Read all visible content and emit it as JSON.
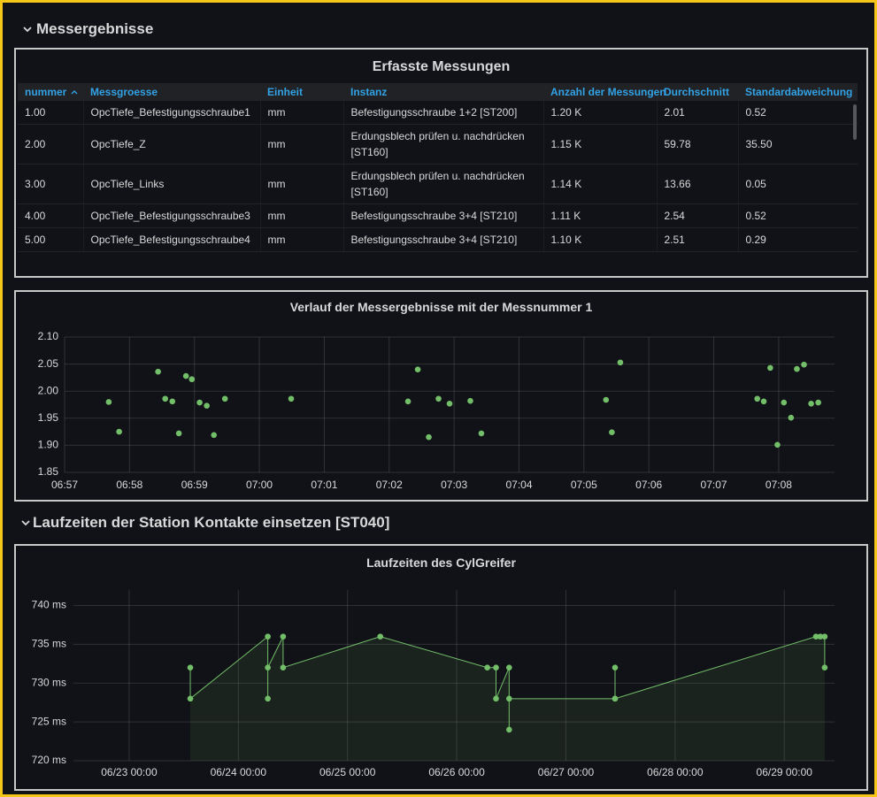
{
  "sections": [
    {
      "title": "Messergebnisse"
    },
    {
      "title": "Laufzeiten der Station Kontakte einsetzen [ST040]"
    }
  ],
  "table": {
    "title": "Erfasste Messungen",
    "columns": [
      "nummer",
      "Messgroesse",
      "Einheit",
      "Instanz",
      "Anzahl der Messungen",
      "Durchschnitt",
      "Standardabweichung"
    ],
    "rows": [
      [
        "1.00",
        "OpcTiefe_Befestigungsschraube1",
        "mm",
        "Befestigungsschraube 1+2 [ST200]",
        "1.20 K",
        "2.01",
        "0.52"
      ],
      [
        "2.00",
        "OpcTiefe_Z",
        "mm",
        "Erdungsblech prüfen u. nachdrücken [ST160]",
        "1.15 K",
        "59.78",
        "35.50"
      ],
      [
        "3.00",
        "OpcTiefe_Links",
        "mm",
        "Erdungsblech prüfen u. nachdrücken [ST160]",
        "1.14 K",
        "13.66",
        "0.05"
      ],
      [
        "4.00",
        "OpcTiefe_Befestigungsschraube3",
        "mm",
        "Befestigungsschraube 3+4 [ST210]",
        "1.11 K",
        "2.54",
        "0.52"
      ],
      [
        "5.00",
        "OpcTiefe_Befestigungsschraube4",
        "mm",
        "Befestigungsschraube 3+4 [ST210]",
        "1.10 K",
        "2.51",
        "0.29"
      ]
    ]
  },
  "chart_data": [
    {
      "type": "scatter",
      "title": "Verlauf der Messergebnisse mit der Messnummer 1",
      "color": "#73bf69",
      "grid": true,
      "x": [
        417.68,
        417.84,
        418.44,
        418.55,
        418.66,
        418.76,
        418.87,
        418.96,
        419.08,
        419.19,
        419.3,
        419.47,
        420.49,
        422.29,
        422.44,
        422.61,
        422.76,
        422.93,
        423.25,
        423.42,
        425.34,
        425.43,
        425.56,
        427.67,
        427.77,
        427.87,
        427.98,
        428.08,
        428.19,
        428.28,
        428.39,
        428.5,
        428.61
      ],
      "values": [
        1.98,
        1.925,
        2.036,
        1.986,
        1.981,
        1.922,
        2.028,
        2.022,
        1.979,
        1.973,
        1.919,
        1.986,
        1.986,
        1.981,
        2.04,
        1.915,
        1.986,
        1.977,
        1.982,
        1.922,
        1.984,
        1.924,
        2.053,
        1.986,
        1.981,
        2.043,
        1.901,
        1.979,
        1.951,
        2.041,
        2.049,
        1.977,
        1.979
      ],
      "xlim": [
        417,
        428.86
      ],
      "ylim": [
        1.85,
        2.1
      ],
      "xticks": [
        {
          "value": 417,
          "label": "06:57"
        },
        {
          "value": 418,
          "label": "06:58"
        },
        {
          "value": 419,
          "label": "06:59"
        },
        {
          "value": 420,
          "label": "07:00"
        },
        {
          "value": 421,
          "label": "07:01"
        },
        {
          "value": 422,
          "label": "07:02"
        },
        {
          "value": 423,
          "label": "07:03"
        },
        {
          "value": 424,
          "label": "07:04"
        },
        {
          "value": 425,
          "label": "07:05"
        },
        {
          "value": 426,
          "label": "07:06"
        },
        {
          "value": 427,
          "label": "07:07"
        },
        {
          "value": 428,
          "label": "07:08"
        }
      ],
      "yticks": [
        {
          "value": 2.1,
          "label": "2.10"
        },
        2.05,
        {
          "value": 2.0,
          "label": "2.00"
        },
        1.95,
        {
          "value": 1.9,
          "label": "1.90"
        },
        1.85
      ]
    },
    {
      "type": "area",
      "title": "Laufzeiten des CylGreifer",
      "color": "#73bf69",
      "grid": true,
      "x": [
        23.56,
        23.56,
        24.27,
        24.27,
        24.27,
        24.41,
        24.41,
        25.3,
        26.28,
        26.36,
        26.36,
        26.48,
        26.48,
        26.48,
        27.45,
        27.45,
        27.45,
        29.29,
        29.33,
        29.37,
        29.37
      ],
      "values": [
        732,
        728,
        736,
        728,
        732,
        736,
        732,
        736,
        732,
        732,
        728,
        732,
        724,
        728,
        728,
        732,
        728,
        736,
        736,
        736,
        732
      ],
      "xlim": [
        22.49,
        29.46
      ],
      "ylim": [
        720,
        742
      ],
      "xticks": [
        {
          "value": 23,
          "label": "06/23 00:00"
        },
        {
          "value": 24,
          "label": "06/24 00:00"
        },
        {
          "value": 25,
          "label": "06/25 00:00"
        },
        {
          "value": 26,
          "label": "06/26 00:00"
        },
        {
          "value": 27,
          "label": "06/27 00:00"
        },
        {
          "value": 28,
          "label": "06/28 00:00"
        },
        {
          "value": 29,
          "label": "06/29 00:00"
        }
      ],
      "yticks": [
        {
          "value": 740,
          "label": "740 ms"
        },
        {
          "value": 735,
          "label": "735 ms"
        },
        {
          "value": 730,
          "label": "730 ms"
        },
        {
          "value": 725,
          "label": "725 ms"
        },
        {
          "value": 720,
          "label": "720 ms"
        }
      ]
    }
  ]
}
